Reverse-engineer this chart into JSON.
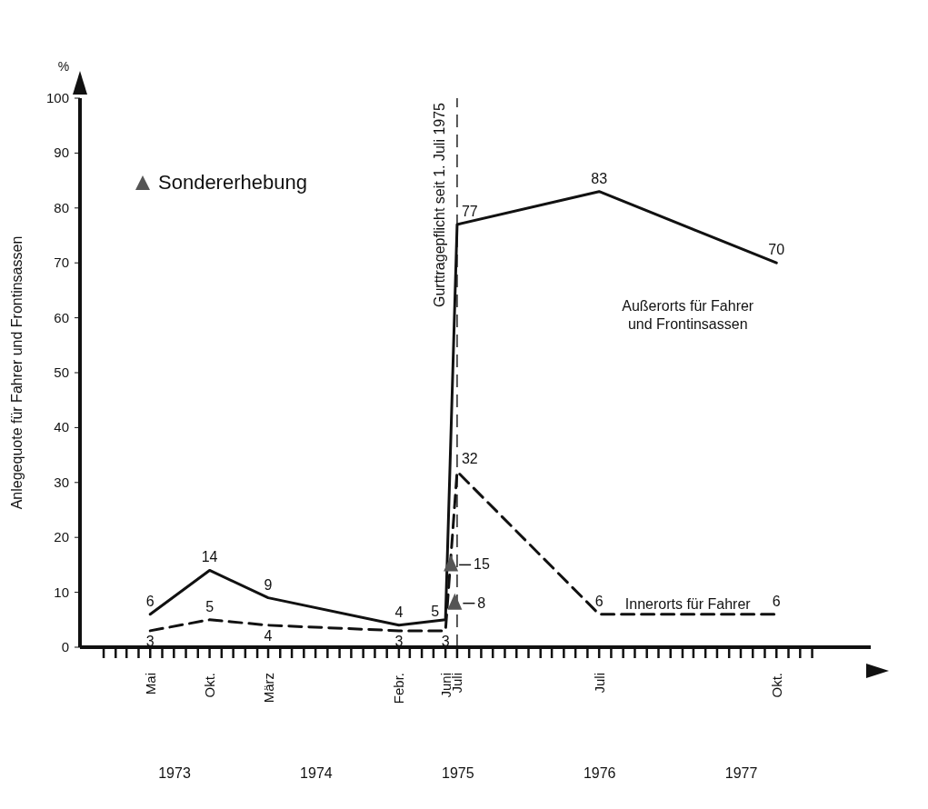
{
  "chart_data": {
    "type": "line",
    "ylabel": "Anlegequote für Fahrer und Frontinsassen",
    "xlim": [
      "1972-11",
      "1978-06"
    ],
    "ylim": [
      0,
      100
    ],
    "yticks": [
      0,
      10,
      20,
      30,
      40,
      50,
      60,
      70,
      80,
      90,
      100
    ],
    "xticks": [
      {
        "value": "1973-01",
        "label": null
      },
      {
        "value": "1973-02",
        "label": null
      },
      {
        "value": "1973-03",
        "label": null
      },
      {
        "value": "1973-04",
        "label": null
      },
      {
        "value": "1973-05",
        "label": "Mai"
      },
      {
        "value": "1973-06",
        "label": null
      },
      {
        "value": "1973-07",
        "label": null
      },
      {
        "value": "1973-08",
        "label": null
      },
      {
        "value": "1973-09",
        "label": null
      },
      {
        "value": "1973-10",
        "label": "Okt."
      },
      {
        "value": "1973-11",
        "label": null
      },
      {
        "value": "1973-12",
        "label": null
      },
      {
        "value": "1974-01",
        "label": null
      },
      {
        "value": "1974-02",
        "label": null
      },
      {
        "value": "1974-03",
        "label": "März"
      },
      {
        "value": "1974-04",
        "label": null
      },
      {
        "value": "1974-05",
        "label": null
      },
      {
        "value": "1974-06",
        "label": null
      },
      {
        "value": "1974-07",
        "label": null
      },
      {
        "value": "1974-08",
        "label": null
      },
      {
        "value": "1974-09",
        "label": null
      },
      {
        "value": "1974-10",
        "label": null
      },
      {
        "value": "1974-11",
        "label": null
      },
      {
        "value": "1974-12",
        "label": null
      },
      {
        "value": "1975-01",
        "label": null
      },
      {
        "value": "1975-02",
        "label": "Febr."
      },
      {
        "value": "1975-03",
        "label": null
      },
      {
        "value": "1975-04",
        "label": null
      },
      {
        "value": "1975-05",
        "label": null
      },
      {
        "value": "1975-06",
        "label": "Juni"
      },
      {
        "value": "1975-07",
        "label": "Juli"
      },
      {
        "value": "1975-08",
        "label": null
      },
      {
        "value": "1975-09",
        "label": null
      },
      {
        "value": "1975-10",
        "label": null
      },
      {
        "value": "1975-11",
        "label": null
      },
      {
        "value": "1975-12",
        "label": null
      },
      {
        "value": "1976-01",
        "label": null
      },
      {
        "value": "1976-02",
        "label": null
      },
      {
        "value": "1976-03",
        "label": null
      },
      {
        "value": "1976-04",
        "label": null
      },
      {
        "value": "1976-05",
        "label": null
      },
      {
        "value": "1976-06",
        "label": null
      },
      {
        "value": "1976-07",
        "label": "Juli"
      },
      {
        "value": "1976-08",
        "label": null
      },
      {
        "value": "1976-09",
        "label": null
      },
      {
        "value": "1976-10",
        "label": null
      },
      {
        "value": "1976-11",
        "label": null
      },
      {
        "value": "1976-12",
        "label": null
      },
      {
        "value": "1977-01",
        "label": null
      },
      {
        "value": "1977-02",
        "label": null
      },
      {
        "value": "1977-03",
        "label": null
      },
      {
        "value": "1977-04",
        "label": null
      },
      {
        "value": "1977-05",
        "label": null
      },
      {
        "value": "1977-06",
        "label": null
      },
      {
        "value": "1977-07",
        "label": null
      },
      {
        "value": "1977-08",
        "label": null
      },
      {
        "value": "1977-09",
        "label": null
      },
      {
        "value": "1977-10",
        "label": "Okt."
      },
      {
        "value": "1977-11",
        "label": null
      },
      {
        "value": "1977-12",
        "label": null
      },
      {
        "value": "1978-01",
        "label": null
      }
    ],
    "legend": "top left",
    "marker": "none",
    "data_labels": true,
    "x": [
      "1973-05",
      "1973-10",
      "1974-03",
      "1975-02",
      "1975-06",
      "1975-07",
      "1976-07",
      "1977-10"
    ],
    "ref_lines": [
      {
        "axis": "x",
        "value": "1975-07",
        "label": "Gurttragepflicht seit 1. Juli 1975",
        "line_style": "dashed",
        "color": "#222222"
      }
    ],
    "annotations": [
      "%",
      "1973",
      "1974",
      "1975",
      "1976",
      "1977"
    ],
    "series": [
      {
        "name": "Außerorts für Fahrer und Frontinsassen",
        "color": "#111111",
        "line_style": "solid",
        "values": [
          6,
          14,
          9,
          4,
          5,
          77,
          83,
          70
        ]
      },
      {
        "name": "Innerorts für Fahrer",
        "color": "#111111",
        "line_style": "dashed",
        "values": [
          3,
          5,
          4,
          3,
          3,
          32,
          6,
          6
        ]
      },
      {
        "name": "Sondererhebung",
        "type": "scatter",
        "marker": "triangle",
        "color": "#555555",
        "x": [
          "1975-06-15",
          "1975-06-25"
        ],
        "values": [
          15,
          8
        ]
      }
    ]
  }
}
